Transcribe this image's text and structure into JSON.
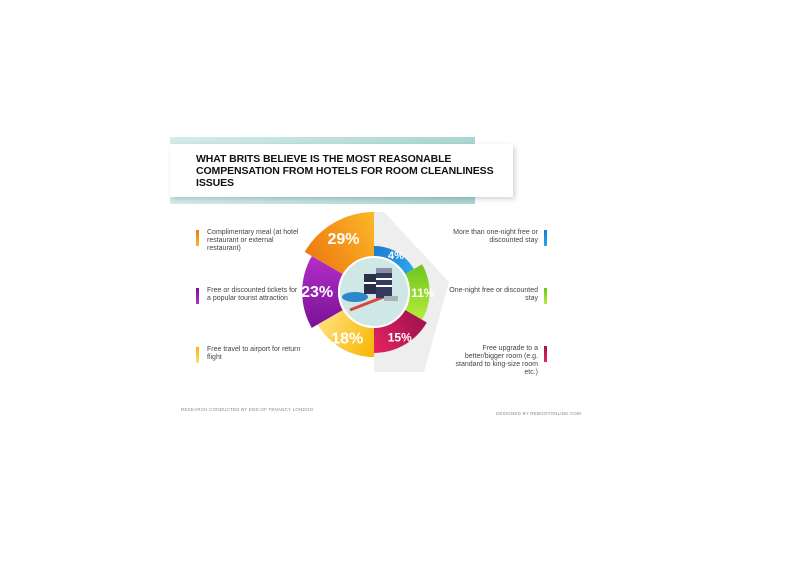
{
  "title": "WHAT BRITS BELIEVE IS THE MOST REASONABLE COMPENSATION FROM HOTELS FOR ROOM CLEANLINESS ISSUES",
  "footer": {
    "left": "RESEARCH CONDUCTED BY END OF TENANCY LONDON",
    "right": "DESIGNED BY REBOOTONLINE.COM"
  },
  "chart_data": {
    "type": "pie",
    "title": "WHAT BRITS BELIEVE IS THE MOST REASONABLE COMPENSATION FROM HOTELS FOR ROOM CLEANLINESS ISSUES",
    "slices": [
      {
        "label": "More than one-night free or discounted stay",
        "value": 4,
        "display": "4%",
        "color": "#1e78d2",
        "color2": "#2aa8e8"
      },
      {
        "label": "One-night free or discounted stay",
        "value": 11,
        "display": "11%",
        "color": "#6cc51e",
        "color2": "#b6ec3a"
      },
      {
        "label": "Free upgrade to a better/bigger room (e.g. standard to king-size room etc.)",
        "value": 15,
        "display": "15%",
        "color": "#a0124e",
        "color2": "#e5245f"
      },
      {
        "label": "Free travel to airport for return flight",
        "value": 18,
        "display": "18%",
        "color": "#f7b500",
        "color2": "#ffe07a"
      },
      {
        "label": "Free or discounted tickets for a popular tourist attraction",
        "value": 23,
        "display": "23%",
        "color": "#7a1296",
        "color2": "#b22ec9"
      },
      {
        "label": "Complimentary meal (at hotel restaurant or external restaurant)",
        "value": 29,
        "display": "29%",
        "color": "#ee7a12",
        "color2": "#fbb827"
      }
    ],
    "legend_placement": "sides"
  }
}
